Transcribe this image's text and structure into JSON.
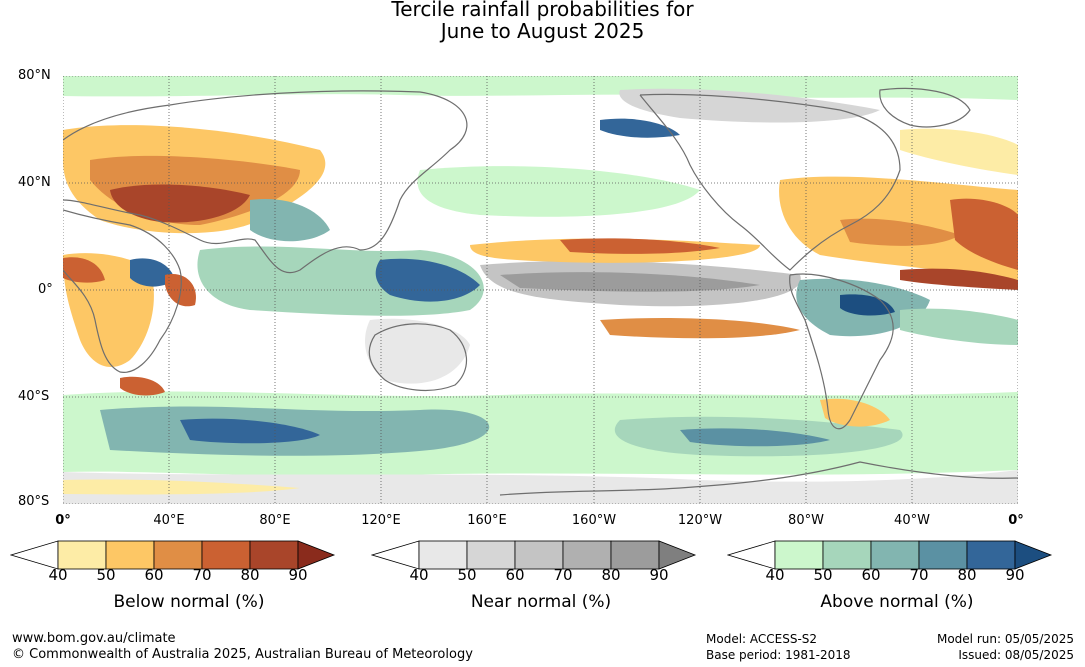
{
  "title": {
    "line1": "Tercile rainfall probabilities for",
    "line2": "June to August 2025"
  },
  "map": {
    "lat_labels": [
      "80°N",
      "40°N",
      "0°",
      "40°S",
      "80°S"
    ],
    "lon_labels": [
      "0°",
      "40°E",
      "80°E",
      "120°E",
      "160°E",
      "160°W",
      "120°W",
      "80°W",
      "40°W",
      "0°"
    ],
    "colors": {
      "land_outline": "#6e6e6e",
      "grid": "#555555"
    }
  },
  "legends": [
    {
      "caption": "Below normal (%)",
      "ticks": [
        "40",
        "50",
        "60",
        "70",
        "80",
        "90"
      ],
      "colors": [
        "#ffffff",
        "#fdeca6",
        "#fdc765",
        "#e08e45",
        "#cb6132",
        "#a9452a",
        "#8a2b1c"
      ]
    },
    {
      "caption": "Near normal (%)",
      "ticks": [
        "40",
        "50",
        "60",
        "70",
        "80",
        "90"
      ],
      "colors": [
        "#ffffff",
        "#e8e8e8",
        "#d6d6d6",
        "#c4c4c4",
        "#b0b0b0",
        "#9c9c9c",
        "#7f7f7f"
      ]
    },
    {
      "caption": "Above normal (%)",
      "ticks": [
        "40",
        "50",
        "60",
        "70",
        "80",
        "90"
      ],
      "colors": [
        "#ffffff",
        "#ccf7cc",
        "#a6d6bb",
        "#82b5b0",
        "#5b91a3",
        "#336699",
        "#1c4e80"
      ]
    }
  ],
  "footer": {
    "url": "www.bom.gov.au/climate",
    "copyright": "© Commonwealth of Australia 2025, Australian Bureau of Meteorology",
    "model": "Model: ACCESS-S2",
    "base_period": "Base period: 1981-2018",
    "model_run": "Model run: 05/05/2025",
    "issued": "Issued: 08/05/2025"
  }
}
